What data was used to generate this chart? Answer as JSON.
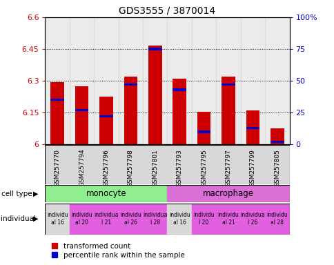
{
  "title": "GDS3555 / 3870014",
  "samples": [
    "GSM257770",
    "GSM257794",
    "GSM257796",
    "GSM257798",
    "GSM257801",
    "GSM257793",
    "GSM257795",
    "GSM257797",
    "GSM257799",
    "GSM257805"
  ],
  "red_values": [
    6.295,
    6.275,
    6.225,
    6.32,
    6.465,
    6.31,
    6.155,
    6.32,
    6.16,
    6.075
  ],
  "blue_values_pct": [
    35,
    27,
    22,
    47,
    75,
    43,
    10,
    47,
    13,
    2
  ],
  "ymin": 6.0,
  "ymax": 6.6,
  "yticks": [
    6.0,
    6.15,
    6.3,
    6.45,
    6.6
  ],
  "ytick_labels": [
    "6",
    "6.15",
    "6.3",
    "6.45",
    "6.6"
  ],
  "right_yticks": [
    0,
    25,
    50,
    75,
    100
  ],
  "right_ytick_labels": [
    "0",
    "25",
    "50",
    "75",
    "100%"
  ],
  "cell_types": [
    {
      "label": "monocyte",
      "start": 0,
      "end": 5,
      "color": "#90ee90"
    },
    {
      "label": "macrophage",
      "start": 5,
      "end": 10,
      "color": "#da70d6"
    }
  ],
  "ind_texts": [
    "individu\nal 16",
    "individu\nal 20",
    "individua\nl 21",
    "individu\nal 26",
    "individua\nl 28",
    "individu\nal 16",
    "individu\nl 20",
    "individu\nal 21",
    "individua\nl 26",
    "individu\nal 28"
  ],
  "ind_bg_colors": [
    "#d8d8d8",
    "#e060e0",
    "#e060e0",
    "#e060e0",
    "#e060e0",
    "#d8d8d8",
    "#e060e0",
    "#e060e0",
    "#e060e0",
    "#e060e0"
  ],
  "bar_width": 0.55,
  "red_color": "#cc0000",
  "blue_color": "#0000cc",
  "legend_red": "transformed count",
  "legend_blue": "percentile rank within the sample",
  "ylabel_color_red": "#cc0000",
  "ylabel_color_blue": "#0000cc",
  "col_bg_color": "#d8d8d8"
}
